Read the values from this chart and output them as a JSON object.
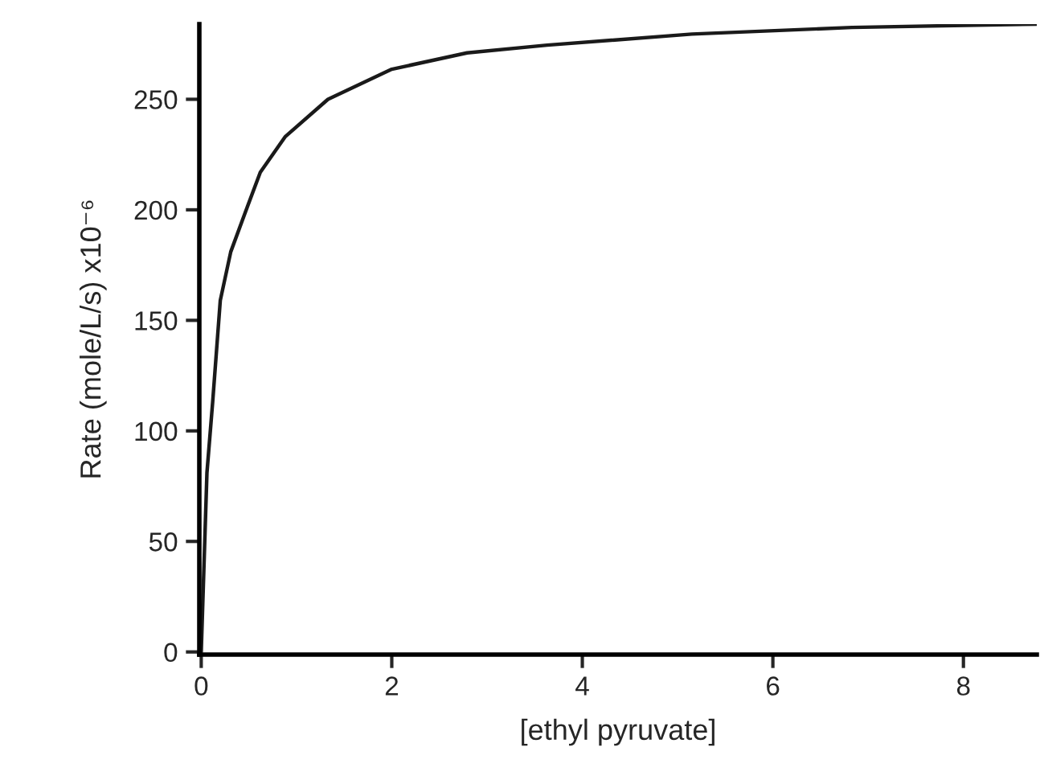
{
  "chart_data": {
    "type": "line",
    "xlabel": "[ethyl pyruvate]",
    "ylabel": "Rate (mole/L/s) x10⁻⁶",
    "x": [
      0,
      0.06,
      0.12,
      0.2,
      0.31,
      0.455,
      0.62,
      0.88,
      1.33,
      2.0,
      2.79,
      3.63,
      5.15,
      6.83,
      8.77
    ],
    "series": [
      {
        "color": "#1a1a1a",
        "values": [
          0,
          81,
          113,
          159,
          181,
          198,
          217,
          233,
          250,
          263.6,
          271,
          274.5,
          279.5,
          282.5,
          284
        ]
      }
    ],
    "xlim": [
      -0.02,
      8.77
    ],
    "ylim": [
      -1.2,
      284
    ],
    "xticks": [
      0,
      2,
      4,
      6,
      8
    ],
    "yticks": [
      0,
      50,
      100,
      150,
      200,
      250
    ],
    "grid": false,
    "legend": false,
    "marker": "none",
    "line_style": "solid"
  }
}
